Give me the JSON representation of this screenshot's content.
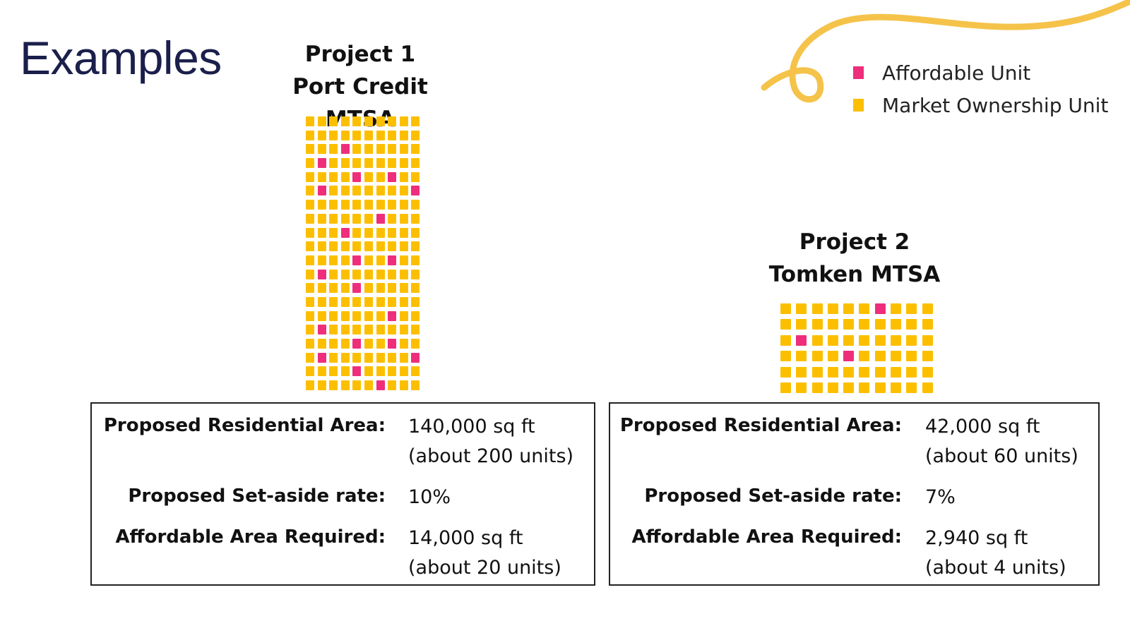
{
  "slide": {
    "title": "Examples"
  },
  "legend": {
    "items": [
      {
        "label": "Affordable Unit",
        "color": "#ee2e7b"
      },
      {
        "label": "Market Ownership Unit",
        "color": "#fcbf00"
      }
    ]
  },
  "colors": {
    "affordable": "#ee2e7b",
    "market": "#fcbf00",
    "title": "#1b1f4b",
    "accent_line": "#f5c34a"
  },
  "projects": [
    {
      "name": "Project 1",
      "location": "Port Credit MTSA",
      "grid": {
        "columns": 10,
        "rows": 20,
        "affordable_units": 20
      },
      "residential_area_label": "Proposed Residential Area:",
      "residential_area_value": "140,000 sq ft",
      "residential_area_units": "(about 200 units)",
      "setaside_label": "Proposed Set-aside rate:",
      "setaside_value": "10%",
      "affordable_area_label": "Affordable Area Required:",
      "affordable_area_value": "14,000 sq ft",
      "affordable_area_units": "(about 20 units)"
    },
    {
      "name": "Project 2",
      "location": "Tomken MTSA",
      "grid": {
        "columns": 10,
        "rows": 6,
        "affordable_units": 4
      },
      "residential_area_label": "Proposed Residential Area:",
      "residential_area_value": "42,000 sq ft",
      "residential_area_units": "(about 60 units)",
      "setaside_label": "Proposed Set-aside rate:",
      "setaside_value": "7%",
      "affordable_area_label": "Affordable Area Required:",
      "affordable_area_value": "2,940 sq ft",
      "affordable_area_units": "(about 4 units)"
    }
  ]
}
